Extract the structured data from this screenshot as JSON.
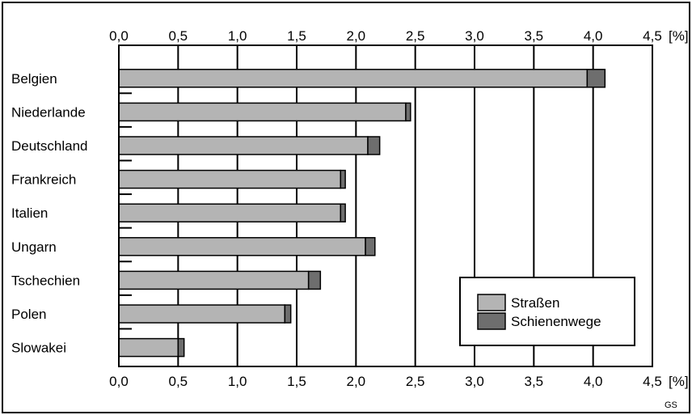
{
  "chart_data": {
    "type": "bar",
    "orientation": "horizontal",
    "stacked": true,
    "categories": [
      "Belgien",
      "Niederlande",
      "Deutschland",
      "Frankreich",
      "Italien",
      "Ungarn",
      "Tschechien",
      "Polen",
      "Slowakei"
    ],
    "series": [
      {
        "name": "Straßen",
        "values": [
          3.95,
          2.42,
          2.1,
          1.87,
          1.87,
          2.08,
          1.6,
          1.4,
          0.5
        ],
        "color": "#b4b4b4"
      },
      {
        "name": "Schienenwege",
        "values": [
          0.15,
          0.04,
          0.1,
          0.04,
          0.04,
          0.08,
          0.1,
          0.05,
          0.05
        ],
        "color": "#6e6e6e"
      }
    ],
    "xlim": [
      0,
      4.5
    ],
    "x_ticks": [
      "0,0",
      "0,5",
      "1,0",
      "1,5",
      "2,0",
      "2,5",
      "3,0",
      "3,5",
      "4,0",
      "4,5"
    ],
    "x_unit": "[%]",
    "grid": "vertical",
    "legend_position": "bottom-right",
    "credit": "GS"
  }
}
